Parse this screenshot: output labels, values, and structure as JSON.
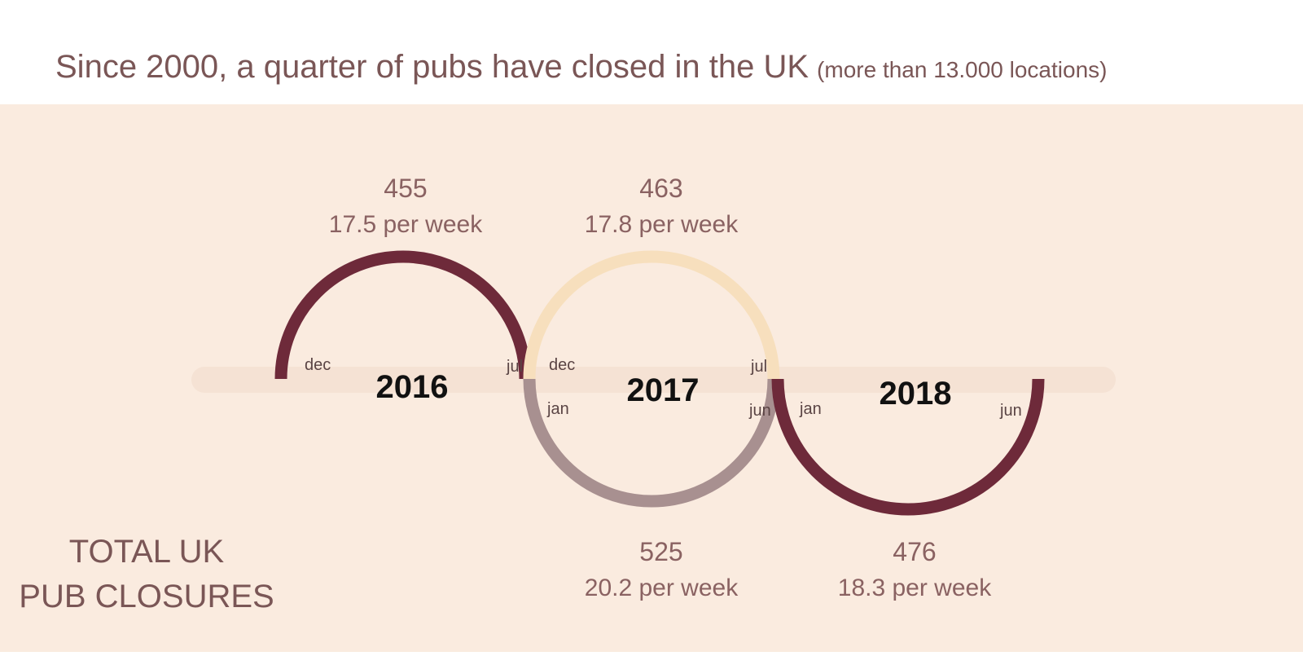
{
  "header": {
    "title": "Since 2000, a quarter of pubs have closed in the UK",
    "subtitle": "(more than 13.000 locations)"
  },
  "side_label": [
    "TOTAL UK",
    "PUB CLOSURES"
  ],
  "years": [
    "2016",
    "2017",
    "2018"
  ],
  "periods": [
    {
      "total": "455",
      "rate": "17.5 per week",
      "months": [
        "dec",
        "jul"
      ]
    },
    {
      "total": "463",
      "rate": "17.8 per week",
      "months": [
        "dec",
        "jul"
      ]
    },
    {
      "total": "525",
      "rate": "20.2 per week",
      "months": [
        "jan",
        "jun"
      ]
    },
    {
      "total": "476",
      "rate": "18.3 per week",
      "months": [
        "jan",
        "jun"
      ]
    }
  ]
}
